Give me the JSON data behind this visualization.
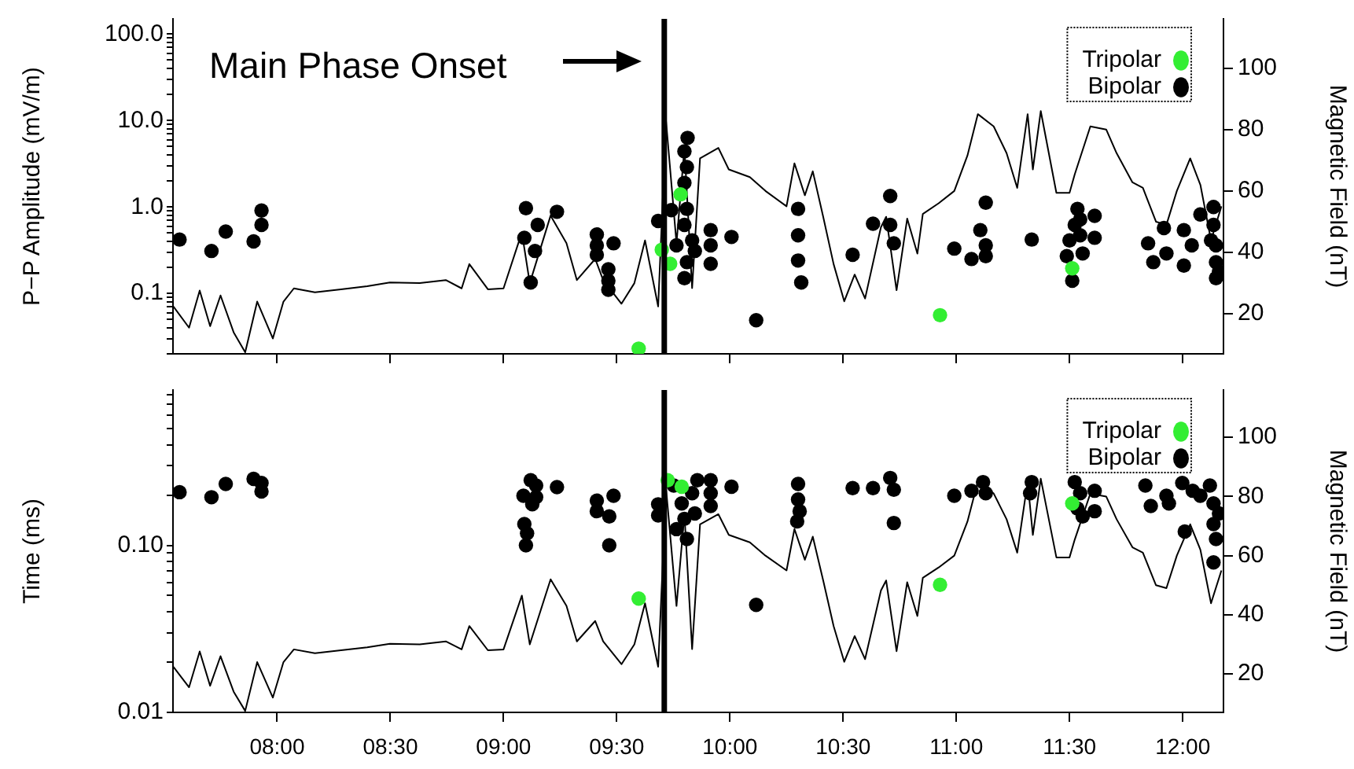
{
  "chart_data": [
    {
      "type": "scatter",
      "ylabel": "P−P Amplitude (mV/m)",
      "y2label": "Magnetic Field (nT)",
      "log": "y",
      "grid": false,
      "legend": "top right",
      "marker": "circle",
      "tick_labels": "y",
      "annotations": [
        "Main Phase Onset"
      ],
      "xlim": [
        7.54,
        12.18
      ],
      "xticks": [
        {
          "value": 8,
          "label": null
        },
        {
          "value": 8.5,
          "label": null
        },
        {
          "value": 9,
          "label": null
        },
        {
          "value": 9.5,
          "label": null
        },
        {
          "value": 10,
          "label": null
        },
        {
          "value": 10.5,
          "label": null
        },
        {
          "value": 11,
          "label": null
        },
        {
          "value": 11.5,
          "label": null
        },
        {
          "value": 12,
          "label": null
        }
      ],
      "ylim": [
        0.02,
        150
      ],
      "yticks": [
        {
          "value": 0.02,
          "label": null
        },
        {
          "value": 0.03,
          "label": null
        },
        {
          "value": 0.04,
          "label": null
        },
        {
          "value": 0.05,
          "label": null
        },
        {
          "value": 0.06,
          "label": null
        },
        {
          "value": 0.07,
          "label": null
        },
        {
          "value": 0.08,
          "label": null
        },
        {
          "value": 0.09,
          "label": null
        },
        0.1,
        {
          "value": 0.2,
          "label": null
        },
        {
          "value": 0.3,
          "label": null
        },
        {
          "value": 0.4,
          "label": null
        },
        {
          "value": 0.5,
          "label": null
        },
        {
          "value": 0.6,
          "label": null
        },
        {
          "value": 0.7,
          "label": null
        },
        {
          "value": 0.8,
          "label": null
        },
        {
          "value": 0.9,
          "label": null
        },
        {
          "value": 1,
          "label": "1.0"
        },
        {
          "value": 2,
          "label": null
        },
        {
          "value": 3,
          "label": null
        },
        {
          "value": 4,
          "label": null
        },
        {
          "value": 5,
          "label": null
        },
        {
          "value": 6,
          "label": null
        },
        {
          "value": 7,
          "label": null
        },
        {
          "value": 8,
          "label": null
        },
        {
          "value": 9,
          "label": null
        },
        {
          "value": 10,
          "label": "10.0"
        },
        {
          "value": 20,
          "label": null
        },
        {
          "value": 30,
          "label": null
        },
        {
          "value": 40,
          "label": null
        },
        {
          "value": 50,
          "label": null
        },
        {
          "value": 60,
          "label": null
        },
        {
          "value": 70,
          "label": null
        },
        {
          "value": 80,
          "label": null
        },
        {
          "value": 90,
          "label": null
        },
        {
          "value": 100,
          "label": "100.0"
        }
      ],
      "y2lim": [
        7,
        116
      ],
      "y2ticks": [
        20,
        40,
        60,
        80,
        100
      ],
      "ref_lines": [
        {
          "axis": "x",
          "value": 9.71,
          "color": "#000000"
        }
      ],
      "series": [
        {
          "type": "line",
          "axis": "y2",
          "color": "#000000",
          "marker": "none",
          "x": [
            7.542,
            7.611,
            7.658,
            7.704,
            7.75,
            7.808,
            7.859,
            7.912,
            7.981,
            8.028,
            8.074,
            8.167,
            8.282,
            8.398,
            8.498,
            8.63,
            8.745,
            8.815,
            8.849,
            8.931,
            9.0,
            9.081,
            9.116,
            9.208,
            9.278,
            9.324,
            9.405,
            9.44,
            9.521,
            9.578,
            9.625,
            9.683,
            9.718,
            9.764,
            9.799,
            9.833,
            9.868,
            9.949,
            9.995,
            10.088,
            10.157,
            10.25,
            10.285,
            10.331,
            10.366,
            10.412,
            10.458,
            10.505,
            10.551,
            10.597,
            10.667,
            10.69,
            10.736,
            10.783,
            10.828,
            10.852,
            10.922,
            10.991,
            11.049,
            11.095,
            11.165,
            11.222,
            11.269,
            11.315,
            11.338,
            11.373,
            11.442,
            11.5,
            11.523,
            11.592,
            11.662,
            11.708,
            11.778,
            11.824,
            11.882,
            11.928,
            11.974,
            12.033,
            12.078,
            12.125,
            12.171
          ],
          "values": [
            22.4,
            15.5,
            27.6,
            16,
            26,
            14,
            7.5,
            24,
            12,
            24,
            28.3,
            27,
            28,
            29,
            30.2,
            30,
            31,
            28.3,
            36.2,
            28,
            28.3,
            46.5,
            30,
            52,
            43,
            31,
            37.9,
            31,
            23.3,
            30,
            43.9,
            22.4,
            82.6,
            43,
            74,
            28.4,
            70.6,
            74,
            67,
            64.5,
            60,
            55,
            69,
            58.6,
            66.4,
            51.6,
            36.2,
            24.1,
            32.8,
            25,
            48.2,
            51.6,
            27.7,
            51,
            39.6,
            52.5,
            56,
            60,
            71.5,
            85,
            81,
            72.3,
            61,
            85,
            67,
            86,
            59.4,
            59.4,
            65.4,
            81,
            80,
            72.3,
            62.8,
            61,
            50,
            49,
            60,
            70.6,
            62,
            43.9,
            55
          ]
        },
        {
          "name": "Bipolar",
          "color": "#000000",
          "x": [
            7.569,
            7.71,
            7.773,
            7.896,
            7.931,
            7.931,
            9.099,
            9.092,
            9.12,
            9.139,
            9.151,
            9.236,
            9.412,
            9.412,
            9.412,
            9.486,
            9.463,
            9.463,
            9.463,
            9.683,
            9.741,
            9.799,
            9.81,
            9.799,
            9.81,
            9.799,
            9.833,
            9.81,
            9.799,
            9.845,
            9.764,
            9.813,
            9.915,
            9.915,
            9.915,
            10.007,
            10.116,
            10.301,
            10.301,
            10.301,
            10.315,
            10.542,
            10.632,
            10.708,
            10.708,
            10.724,
            10.991,
            11.067,
            11.13,
            11.106,
            11.13,
            11.13,
            11.333,
            11.535,
            11.523,
            11.5,
            11.488,
            11.512,
            11.547,
            11.547,
            11.558,
            11.611,
            11.611,
            11.847,
            11.87,
            11.917,
            11.928,
            12.005,
            12.005,
            12.04,
            12.078,
            12.136,
            12.136,
            12.147,
            12.147,
            12.147,
            12.125,
            12.16
          ],
          "values": [
            0.42,
            0.31,
            0.52,
            0.4,
            0.62,
            0.91,
            0.97,
            0.44,
            0.134,
            0.31,
            0.62,
            0.88,
            0.48,
            0.36,
            0.28,
            0.38,
            0.19,
            0.14,
            0.11,
            0.69,
            0.92,
            4.4,
            2.9,
            1.9,
            0.95,
            0.62,
            0.41,
            0.23,
            0.15,
            0.31,
            0.36,
            6.3,
            0.54,
            0.36,
            0.22,
            0.45,
            0.049,
            0.95,
            0.47,
            0.24,
            0.134,
            0.28,
            0.64,
            1.34,
            0.62,
            0.38,
            0.33,
            0.25,
            1.12,
            0.54,
            0.36,
            0.27,
            0.42,
            0.95,
            0.62,
            0.41,
            0.27,
            0.14,
            0.72,
            0.47,
            0.29,
            0.79,
            0.44,
            0.38,
            0.23,
            0.57,
            0.29,
            0.54,
            0.21,
            0.36,
            0.82,
            1.0,
            0.62,
            0.36,
            0.23,
            0.15,
            0.41,
            0.18
          ]
        },
        {
          "name": "Tripolar",
          "color": "#33ee33",
          "x": [
            9.597,
            9.699,
            9.736,
            9.782,
            10.928,
            11.512
          ],
          "values": [
            0.023,
            0.32,
            0.22,
            1.4,
            0.056,
            0.195
          ]
        }
      ]
    },
    {
      "type": "scatter",
      "ylabel": "Time (ms)",
      "y2label": "Magnetic Field (nT)",
      "log": "y",
      "grid": false,
      "legend": "top right",
      "marker": "circle",
      "xlim": [
        7.54,
        12.18
      ],
      "xticks": [
        {
          "value": 8,
          "label": "08:00"
        },
        {
          "value": 8.5,
          "label": "08:30"
        },
        {
          "value": 9,
          "label": "09:00"
        },
        {
          "value": 9.5,
          "label": "09:30"
        },
        {
          "value": 10,
          "label": "10:00"
        },
        {
          "value": 10.5,
          "label": "10:30"
        },
        {
          "value": 11,
          "label": "11:00"
        },
        {
          "value": 11.5,
          "label": "11:30"
        },
        {
          "value": 12,
          "label": "12:00"
        }
      ],
      "ylim": [
        0.01,
        0.85
      ],
      "yticks": [
        0.01,
        {
          "value": 0.02,
          "label": null
        },
        {
          "value": 0.03,
          "label": null
        },
        {
          "value": 0.04,
          "label": null
        },
        {
          "value": 0.05,
          "label": null
        },
        {
          "value": 0.06,
          "label": null
        },
        {
          "value": 0.07,
          "label": null
        },
        {
          "value": 0.08,
          "label": null
        },
        {
          "value": 0.09,
          "label": null
        },
        {
          "value": 0.1,
          "label": "0.10"
        },
        {
          "value": 0.2,
          "label": null
        },
        {
          "value": 0.3,
          "label": null
        },
        {
          "value": 0.4,
          "label": null
        },
        {
          "value": 0.5,
          "label": null
        },
        {
          "value": 0.6,
          "label": null
        },
        {
          "value": 0.7,
          "label": null
        },
        {
          "value": 0.8,
          "label": null
        }
      ],
      "y2lim": [
        7,
        116
      ],
      "y2ticks": [
        20,
        40,
        60,
        80,
        100
      ],
      "ref_lines": [
        {
          "axis": "x",
          "value": 9.71,
          "color": "#000000"
        }
      ],
      "series": [
        {
          "type": "line",
          "axis": "y2",
          "color": "#000000",
          "marker": "none",
          "x": [
            7.542,
            7.611,
            7.658,
            7.704,
            7.75,
            7.808,
            7.859,
            7.912,
            7.981,
            8.028,
            8.074,
            8.167,
            8.282,
            8.398,
            8.498,
            8.63,
            8.745,
            8.815,
            8.849,
            8.931,
            9.0,
            9.081,
            9.116,
            9.208,
            9.278,
            9.324,
            9.405,
            9.44,
            9.521,
            9.578,
            9.625,
            9.683,
            9.718,
            9.764,
            9.799,
            9.833,
            9.868,
            9.949,
            9.995,
            10.088,
            10.157,
            10.25,
            10.285,
            10.331,
            10.366,
            10.412,
            10.458,
            10.505,
            10.551,
            10.597,
            10.667,
            10.69,
            10.736,
            10.783,
            10.828,
            10.852,
            10.922,
            10.991,
            11.049,
            11.095,
            11.165,
            11.222,
            11.269,
            11.315,
            11.338,
            11.373,
            11.442,
            11.5,
            11.523,
            11.592,
            11.662,
            11.708,
            11.778,
            11.824,
            11.882,
            11.928,
            11.974,
            12.033,
            12.078,
            12.125,
            12.171
          ],
          "values": [
            22.4,
            15.5,
            27.6,
            16,
            26,
            14,
            7.5,
            24,
            12,
            24,
            28.3,
            27,
            28,
            29,
            30.2,
            30,
            31,
            28.3,
            36.2,
            28,
            28.3,
            46.5,
            30,
            52,
            43,
            31,
            37.9,
            31,
            23.3,
            30,
            43.9,
            22.4,
            82.6,
            43,
            74,
            28.4,
            70.6,
            74,
            67,
            64.5,
            60,
            55,
            69,
            58.6,
            66.4,
            51.6,
            36.2,
            24.1,
            32.8,
            25,
            48.2,
            51.6,
            27.7,
            51,
            39.6,
            52.5,
            56,
            60,
            71.5,
            85,
            81,
            72.3,
            61,
            85,
            67,
            86,
            59.4,
            59.4,
            65.4,
            81,
            80,
            72.3,
            62.8,
            61,
            50,
            49,
            60,
            70.6,
            62,
            43.9,
            55
          ]
        },
        {
          "name": "Bipolar",
          "color": "#000000",
          "x": [
            7.569,
            7.71,
            7.773,
            7.896,
            7.931,
            7.931,
            9.088,
            9.092,
            9.104,
            9.099,
            9.12,
            9.144,
            9.127,
            9.144,
            9.236,
            9.412,
            9.412,
            9.486,
            9.467,
            9.467,
            9.683,
            9.683,
            9.752,
            9.787,
            9.799,
            9.81,
            9.833,
            9.856,
            9.845,
            9.764,
            9.915,
            9.915,
            9.915,
            10.007,
            10.116,
            10.301,
            10.301,
            10.308,
            10.297,
            10.542,
            10.632,
            10.708,
            10.724,
            10.724,
            10.991,
            11.067,
            11.118,
            11.13,
            11.333,
            11.326,
            11.523,
            11.547,
            11.535,
            11.558,
            11.611,
            11.611,
            11.835,
            11.859,
            11.928,
            11.939,
            11.998,
            12.009,
            12.044,
            12.078,
            12.12,
            12.136,
            12.136,
            12.147,
            12.136,
            12.16
          ],
          "values": [
            0.208,
            0.194,
            0.233,
            0.25,
            0.236,
            0.21,
            0.198,
            0.134,
            0.118,
            0.1,
            0.245,
            0.228,
            0.176,
            0.194,
            0.223,
            0.185,
            0.16,
            0.198,
            0.149,
            0.1,
            0.176,
            0.151,
            0.228,
            0.178,
            0.144,
            0.109,
            0.205,
            0.245,
            0.155,
            0.125,
            0.245,
            0.205,
            0.172,
            0.224,
            0.044,
            0.233,
            0.188,
            0.16,
            0.139,
            0.22,
            0.22,
            0.253,
            0.215,
            0.136,
            0.198,
            0.212,
            0.239,
            0.205,
            0.239,
            0.205,
            0.239,
            0.205,
            0.166,
            0.149,
            0.212,
            0.16,
            0.228,
            0.172,
            0.198,
            0.178,
            0.236,
            0.121,
            0.212,
            0.198,
            0.228,
            0.178,
            0.134,
            0.109,
            0.079,
            0.155
          ]
        },
        {
          "name": "Tripolar",
          "color": "#33ee33",
          "x": [
            9.597,
            9.725,
            9.787,
            10.928,
            11.512
          ],
          "values": [
            0.048,
            0.245,
            0.224,
            0.058,
            0.178
          ]
        }
      ]
    }
  ]
}
